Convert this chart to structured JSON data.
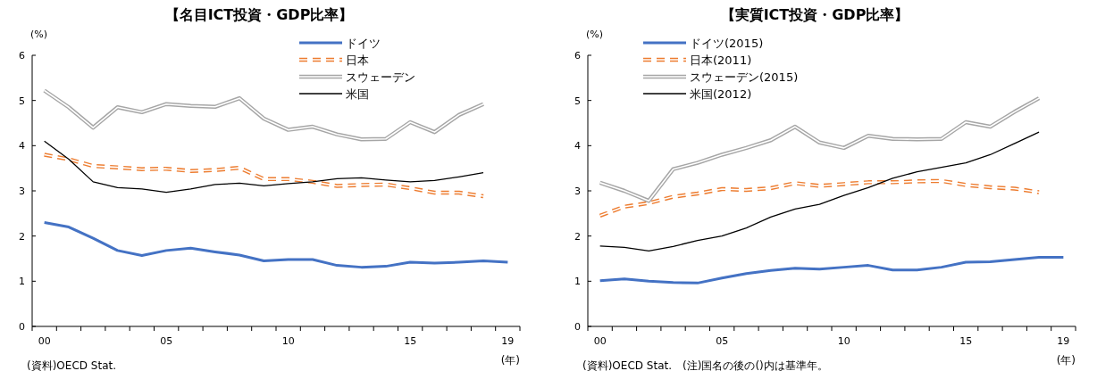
{
  "chart_data": [
    {
      "type": "line",
      "title": "【名目ICT投資・GDP比率】",
      "ylabel": "(%)",
      "xlabel": "(年)",
      "x": [
        2000,
        2001,
        2002,
        2003,
        2004,
        2005,
        2006,
        2007,
        2008,
        2009,
        2010,
        2011,
        2012,
        2013,
        2014,
        2015,
        2016,
        2017,
        2018,
        2019
      ],
      "xlim": [
        1999.5,
        2019.5
      ],
      "xticks": [
        {
          "value": 2000,
          "label": "00"
        },
        {
          "value": 2005,
          "label": "05"
        },
        {
          "value": 2010,
          "label": "10"
        },
        {
          "value": 2015,
          "label": "15"
        },
        {
          "value": 2019,
          "label": "19"
        }
      ],
      "ylim": [
        0,
        6
      ],
      "yticks": [
        0,
        1,
        2,
        3,
        4,
        5,
        6
      ],
      "grid": false,
      "legend": "top right",
      "marker": "none",
      "series": [
        {
          "name": "ドイツ",
          "color": "#4472c4",
          "line_style": "solid",
          "values": [
            2.3,
            2.2,
            1.95,
            1.68,
            1.57,
            1.68,
            1.73,
            1.65,
            1.58,
            1.45,
            1.48,
            1.48,
            1.35,
            1.31,
            1.33,
            1.42,
            1.4,
            1.42,
            1.45,
            1.42
          ]
        },
        {
          "name": "日本",
          "color": "#ed7d31",
          "line_style": "dashed",
          "values": [
            3.8,
            3.7,
            3.55,
            3.52,
            3.48,
            3.49,
            3.44,
            3.46,
            3.51,
            3.26,
            3.26,
            3.2,
            3.11,
            3.13,
            3.14,
            3.06,
            2.96,
            2.96,
            2.88,
            null
          ]
        },
        {
          "name": "スウェーデン",
          "color": "#a6a6a6",
          "line_style": "solid",
          "values": [
            5.22,
            4.85,
            4.4,
            4.85,
            4.74,
            4.92,
            4.88,
            4.86,
            5.05,
            4.6,
            4.35,
            4.42,
            4.25,
            4.14,
            4.15,
            4.52,
            4.3,
            4.68,
            4.92,
            null
          ]
        },
        {
          "name": "米国",
          "color": "#000000",
          "line_style": "solid",
          "values": [
            4.1,
            3.7,
            3.2,
            3.07,
            3.04,
            2.97,
            3.04,
            3.14,
            3.17,
            3.11,
            3.16,
            3.2,
            3.27,
            3.29,
            3.24,
            3.2,
            3.23,
            3.31,
            3.4,
            null
          ]
        }
      ],
      "annotations": [
        "(資料)OECD Stat."
      ]
    },
    {
      "type": "line",
      "title": "【実質ICT投資・GDP比率】",
      "ylabel": "(%)",
      "xlabel": "(年)",
      "x": [
        2000,
        2001,
        2002,
        2003,
        2004,
        2005,
        2006,
        2007,
        2008,
        2009,
        2010,
        2011,
        2012,
        2013,
        2014,
        2015,
        2016,
        2017,
        2018,
        2019
      ],
      "xlim": [
        1999.5,
        2019.5
      ],
      "xticks": [
        {
          "value": 2000,
          "label": "00"
        },
        {
          "value": 2005,
          "label": "05"
        },
        {
          "value": 2010,
          "label": "10"
        },
        {
          "value": 2015,
          "label": "15"
        },
        {
          "value": 2019,
          "label": "19"
        }
      ],
      "ylim": [
        0,
        6
      ],
      "yticks": [
        0,
        1,
        2,
        3,
        4,
        5,
        6
      ],
      "grid": false,
      "legend": "top left",
      "marker": "none",
      "series": [
        {
          "name": "ドイツ(2015)",
          "color": "#4472c4",
          "line_style": "solid",
          "values": [
            1.01,
            1.05,
            1.0,
            0.97,
            0.96,
            1.07,
            1.17,
            1.24,
            1.29,
            1.27,
            1.31,
            1.35,
            1.25,
            1.25,
            1.31,
            1.42,
            1.43,
            1.48,
            1.53,
            1.53
          ]
        },
        {
          "name": "日本(2011)",
          "color": "#ed7d31",
          "line_style": "dashed",
          "values": [
            2.45,
            2.65,
            2.73,
            2.87,
            2.94,
            3.04,
            3.02,
            3.06,
            3.17,
            3.11,
            3.15,
            3.19,
            3.19,
            3.21,
            3.22,
            3.13,
            3.08,
            3.05,
            2.97,
            null
          ]
        },
        {
          "name": "スウェーデン(2015)",
          "color": "#a6a6a6",
          "line_style": "solid",
          "values": [
            3.18,
            3.0,
            2.78,
            3.48,
            3.62,
            3.8,
            3.95,
            4.12,
            4.42,
            4.07,
            3.95,
            4.22,
            4.15,
            4.14,
            4.15,
            4.52,
            4.42,
            4.75,
            5.05,
            null
          ]
        },
        {
          "name": "米国(2012)",
          "color": "#000000",
          "line_style": "solid",
          "values": [
            1.78,
            1.75,
            1.67,
            1.77,
            1.9,
            2.0,
            2.18,
            2.42,
            2.6,
            2.7,
            2.9,
            3.07,
            3.28,
            3.42,
            3.52,
            3.62,
            3.8,
            4.05,
            4.3,
            null
          ]
        }
      ],
      "annotations": [
        "(資料)OECD Stat.　(注)国名の後の()内は基準年。"
      ]
    }
  ]
}
